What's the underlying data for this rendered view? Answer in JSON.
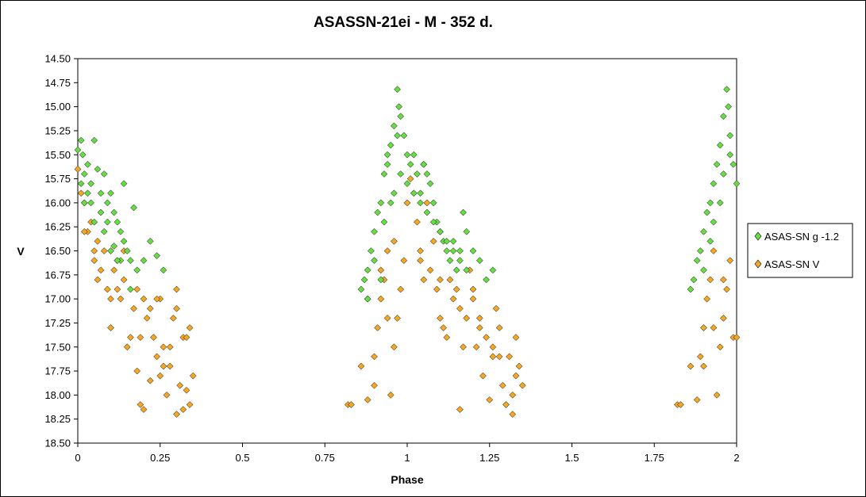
{
  "chart_data": {
    "type": "scatter",
    "title": "ASASSN-21ei - M - 352 d.",
    "xlabel": "Phase",
    "ylabel": "V",
    "xlim": [
      0,
      2
    ],
    "ylim": [
      14.5,
      18.5
    ],
    "y_inverted": true,
    "x_ticks": [
      "0",
      "0.25",
      "0.5",
      "0.75",
      "1",
      "1.25",
      "1.5",
      "1.75",
      "2"
    ],
    "y_ticks": [
      "14.50",
      "14.75",
      "15.00",
      "15.25",
      "15.50",
      "15.75",
      "16.00",
      "16.25",
      "16.50",
      "16.75",
      "17.00",
      "17.25",
      "17.50",
      "17.75",
      "18.00",
      "18.25",
      "18.50"
    ],
    "grid": false,
    "legend_position": "right",
    "series": [
      {
        "name": "ASAS-SN g -1.2",
        "color": "#66dd44",
        "marker": "diamond",
        "x": [
          0.0,
          0.01,
          0.015,
          0.02,
          0.03,
          0.04,
          0.05,
          0.06,
          0.07,
          0.08,
          0.09,
          0.1,
          0.11,
          0.12,
          0.13,
          0.14,
          0.15,
          0.16,
          0.17,
          0.18,
          0.2,
          0.22,
          0.24,
          0.26,
          0.02,
          0.05,
          0.08,
          0.11,
          0.14,
          0.03,
          0.07,
          0.1,
          0.13,
          0.16,
          0.01,
          0.04,
          0.09,
          0.12,
          0.86,
          0.87,
          0.88,
          0.89,
          0.9,
          0.91,
          0.92,
          0.93,
          0.94,
          0.95,
          0.96,
          0.97,
          0.975,
          0.98,
          0.99,
          1.0,
          1.01,
          1.02,
          1.03,
          1.04,
          1.05,
          1.06,
          1.07,
          1.08,
          1.09,
          1.1,
          1.11,
          1.12,
          1.13,
          1.14,
          1.15,
          1.16,
          1.17,
          1.18,
          1.2,
          1.22,
          1.24,
          1.26,
          0.9,
          0.93,
          0.96,
          1.0,
          1.04,
          1.08,
          1.12,
          1.16,
          0.92,
          0.95,
          0.98,
          1.02,
          1.06,
          1.1,
          1.14,
          1.18,
          0.88,
          0.94,
          0.97,
          1.05,
          1.86,
          1.87,
          1.88,
          1.89,
          1.9,
          1.91,
          1.92,
          1.93,
          1.94,
          1.95,
          1.96,
          1.97,
          1.975,
          1.98,
          1.99,
          2.0,
          1.9,
          1.93,
          1.96,
          1.98,
          1.92,
          1.95
        ],
        "y": [
          15.45,
          15.35,
          15.5,
          15.7,
          15.6,
          15.8,
          15.35,
          15.65,
          15.9,
          15.7,
          16.0,
          15.9,
          16.1,
          16.2,
          16.3,
          15.8,
          16.5,
          16.6,
          16.05,
          16.7,
          16.6,
          16.4,
          16.55,
          16.7,
          16.0,
          16.2,
          16.3,
          16.45,
          16.4,
          15.9,
          16.1,
          16.5,
          16.6,
          16.9,
          15.8,
          16.0,
          16.2,
          16.6,
          16.9,
          16.8,
          16.7,
          16.5,
          16.3,
          16.1,
          16.0,
          15.7,
          15.6,
          15.4,
          15.2,
          14.82,
          15.0,
          15.1,
          15.3,
          15.5,
          15.6,
          15.5,
          15.7,
          15.9,
          15.6,
          15.7,
          15.8,
          16.0,
          16.2,
          16.3,
          16.4,
          16.5,
          16.6,
          16.4,
          16.7,
          16.5,
          16.1,
          16.3,
          16.5,
          16.6,
          16.8,
          16.7,
          16.6,
          16.2,
          15.9,
          15.8,
          16.0,
          16.2,
          16.4,
          16.6,
          16.8,
          16.0,
          15.7,
          15.9,
          16.1,
          16.3,
          16.5,
          16.7,
          17.0,
          15.5,
          15.3,
          15.6,
          16.9,
          16.8,
          16.6,
          16.5,
          16.3,
          16.1,
          16.0,
          15.8,
          15.6,
          15.4,
          15.1,
          14.82,
          15.0,
          15.3,
          15.6,
          15.8,
          16.7,
          16.2,
          15.7,
          15.5,
          16.4,
          16.0
        ]
      },
      {
        "name": "ASAS-SN V",
        "color": "#f5a623",
        "marker": "diamond",
        "x": [
          0.0,
          0.01,
          0.02,
          0.03,
          0.04,
          0.05,
          0.06,
          0.07,
          0.08,
          0.09,
          0.1,
          0.11,
          0.12,
          0.13,
          0.14,
          0.15,
          0.16,
          0.17,
          0.18,
          0.19,
          0.2,
          0.21,
          0.22,
          0.23,
          0.24,
          0.25,
          0.26,
          0.27,
          0.28,
          0.29,
          0.3,
          0.31,
          0.32,
          0.33,
          0.34,
          0.35,
          0.02,
          0.06,
          0.1,
          0.14,
          0.18,
          0.22,
          0.26,
          0.3,
          0.34,
          0.05,
          0.12,
          0.19,
          0.24,
          0.28,
          0.32,
          0.2,
          0.25,
          0.3,
          0.33,
          0.82,
          0.83,
          0.86,
          0.88,
          0.9,
          0.91,
          0.92,
          0.93,
          0.94,
          0.95,
          0.96,
          0.97,
          0.98,
          0.99,
          1.0,
          1.01,
          1.02,
          1.03,
          1.04,
          1.05,
          1.06,
          1.07,
          1.08,
          1.09,
          1.1,
          1.11,
          1.12,
          1.13,
          1.14,
          1.15,
          1.16,
          1.17,
          1.18,
          1.19,
          1.2,
          1.21,
          1.22,
          1.23,
          1.24,
          1.25,
          1.26,
          1.27,
          1.28,
          1.29,
          1.3,
          1.31,
          1.32,
          1.33,
          1.34,
          1.35,
          0.88,
          0.92,
          0.96,
          1.04,
          1.1,
          1.16,
          1.22,
          1.28,
          1.33,
          0.9,
          0.94,
          1.2,
          1.26,
          1.32,
          1.82,
          1.83,
          1.86,
          1.88,
          1.89,
          1.9,
          1.91,
          1.92,
          1.93,
          1.94,
          1.95,
          1.96,
          1.97,
          1.98,
          1.99,
          2.0,
          1.9,
          1.93,
          1.96
        ],
        "y": [
          15.65,
          15.9,
          16.0,
          16.3,
          16.2,
          16.5,
          16.4,
          16.7,
          16.5,
          16.9,
          17.3,
          16.7,
          16.6,
          17.0,
          16.8,
          17.5,
          17.4,
          17.1,
          17.75,
          18.1,
          18.15,
          17.2,
          17.85,
          17.4,
          17.6,
          17.0,
          17.7,
          18.0,
          17.5,
          17.2,
          18.2,
          17.9,
          17.4,
          17.95,
          18.1,
          17.8,
          16.3,
          16.8,
          17.0,
          16.5,
          16.9,
          17.1,
          17.5,
          16.9,
          17.3,
          16.6,
          16.9,
          17.4,
          17.0,
          17.7,
          18.15,
          17.0,
          17.8,
          17.1,
          17.4,
          18.1,
          18.1,
          17.7,
          18.05,
          17.6,
          17.3,
          17.0,
          16.8,
          16.5,
          18.0,
          17.5,
          17.2,
          16.9,
          16.6,
          16.0,
          15.75,
          15.9,
          16.2,
          16.5,
          16.8,
          16.0,
          16.7,
          16.4,
          16.9,
          17.2,
          17.3,
          17.4,
          16.8,
          17.0,
          16.9,
          18.15,
          17.5,
          17.2,
          16.7,
          17.0,
          17.5,
          17.2,
          17.8,
          17.4,
          18.05,
          17.5,
          17.1,
          17.3,
          17.9,
          18.1,
          17.6,
          18.2,
          17.4,
          17.7,
          17.9,
          17.0,
          16.7,
          16.4,
          16.6,
          16.8,
          17.1,
          17.3,
          17.6,
          17.8,
          17.9,
          17.2,
          16.9,
          17.6,
          18.0,
          18.1,
          18.1,
          17.7,
          18.05,
          17.6,
          17.3,
          17.0,
          16.8,
          16.5,
          18.0,
          17.5,
          17.2,
          16.9,
          16.6,
          17.4,
          17.4,
          17.7,
          17.3,
          16.8
        ]
      }
    ]
  }
}
